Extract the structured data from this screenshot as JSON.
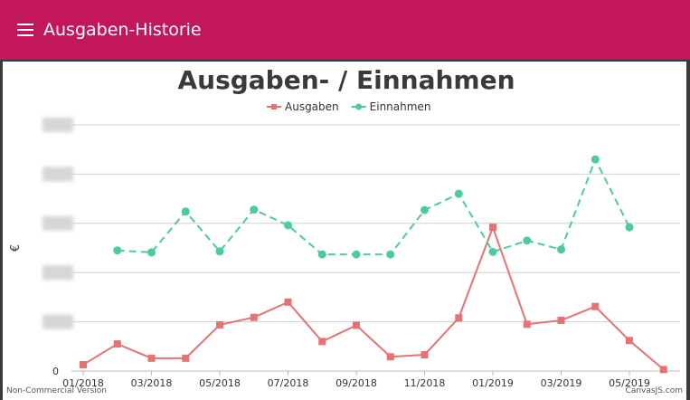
{
  "app": {
    "title": "Ausgaben-Historie",
    "bar_color": "#c2185b",
    "menu_icon": "hamburger-menu-icon"
  },
  "chart_data": {
    "type": "line",
    "title": "Ausgaben- / Einnahmen",
    "ylabel": "€",
    "xlabel": "",
    "x_tick_labels": [
      "01/2018",
      "03/2018",
      "05/2018",
      "07/2018",
      "09/2018",
      "11/2018",
      "01/2019",
      "03/2019",
      "05/2019"
    ],
    "y_tick_labels_visible": [
      "0"
    ],
    "y_tick_labels_note": "blurred",
    "ylim": [
      0,
      5
    ],
    "grid": true,
    "legend_position": "top",
    "series": [
      {
        "name": "Ausgaben",
        "color": "#e57373",
        "marker": "square",
        "dash": false,
        "x": [
          "01/2018",
          "02/2018",
          "03/2018",
          "04/2018",
          "05/2018",
          "06/2018",
          "07/2018",
          "08/2018",
          "09/2018",
          "10/2018",
          "11/2018",
          "12/2018",
          "01/2019",
          "02/2019",
          "03/2019",
          "04/2019",
          "05/2019",
          "06/2019"
        ],
        "y": [
          0.13,
          0.55,
          0.26,
          0.26,
          0.94,
          1.09,
          1.4,
          0.6,
          0.93,
          0.29,
          0.33,
          1.08,
          2.92,
          0.95,
          1.03,
          1.31,
          0.62,
          0.03
        ]
      },
      {
        "name": "Einnahmen",
        "color": "#4ecb9c",
        "marker": "circle",
        "dash": true,
        "x": [
          "02/2018",
          "03/2018",
          "04/2018",
          "05/2018",
          "06/2018",
          "07/2018",
          "08/2018",
          "09/2018",
          "10/2018",
          "11/2018",
          "12/2018",
          "01/2019",
          "02/2019",
          "03/2019",
          "04/2019",
          "05/2019"
        ],
        "y": [
          2.45,
          2.41,
          3.24,
          2.43,
          3.28,
          2.96,
          2.37,
          2.37,
          2.37,
          3.27,
          3.6,
          2.42,
          2.65,
          2.47,
          4.3,
          2.92
        ]
      }
    ],
    "credits": {
      "left": "Non-Commercial Version",
      "right": "CanvasJS.com"
    }
  }
}
